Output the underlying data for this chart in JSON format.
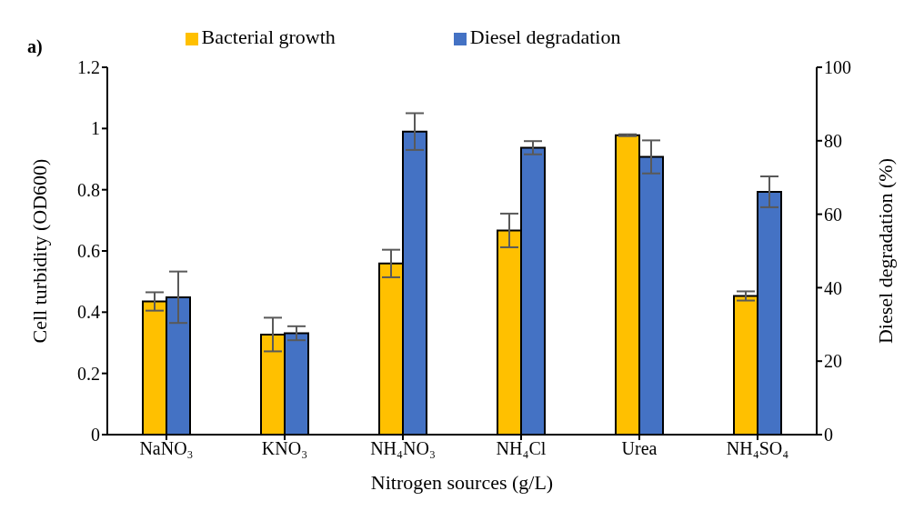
{
  "chart_data": {
    "type": "bar",
    "xlabel": "Nitrogen sources (g/L)",
    "ylabel": "Cell turbidity (OD600)",
    "y2label": "Diesel degradation (%)",
    "annotations": [
      "a)"
    ],
    "categories": [
      "NaNO₃",
      "KNO₃",
      "NH₄NO₃",
      "NH₄Cl",
      "Urea",
      "NH₄SO₄"
    ],
    "series": [
      {
        "name": "Bacterial growth",
        "color": "#ffc000",
        "values": [
          0.435,
          0.327,
          0.559,
          0.667,
          0.978,
          0.453
        ],
        "errors": [
          0.03,
          0.055,
          0.045,
          0.055,
          0.003,
          0.015
        ]
      },
      {
        "name": "Diesel degradation",
        "color": "#4472c4",
        "axis": "y2",
        "values": [
          37.4,
          27.6,
          82.5,
          78.1,
          75.6,
          66.1
        ],
        "errors": [
          7,
          1.9,
          5,
          1.8,
          4.5,
          4.2
        ]
      }
    ],
    "ylim": [
      0,
      1.2
    ],
    "yticks": [
      0,
      0.2,
      0.4,
      0.6,
      0.8,
      1,
      1.2
    ],
    "y2lim": [
      0,
      100
    ],
    "y2ticks": [
      0,
      20,
      40,
      60,
      80,
      100
    ],
    "grid": false,
    "legend": "top"
  }
}
